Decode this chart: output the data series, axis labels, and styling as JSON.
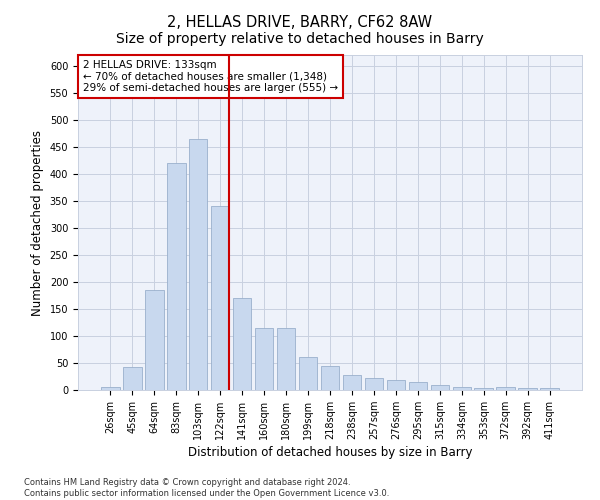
{
  "title": "2, HELLAS DRIVE, BARRY, CF62 8AW",
  "subtitle": "Size of property relative to detached houses in Barry",
  "xlabel": "Distribution of detached houses by size in Barry",
  "ylabel": "Number of detached properties",
  "categories": [
    "26sqm",
    "45sqm",
    "64sqm",
    "83sqm",
    "103sqm",
    "122sqm",
    "141sqm",
    "160sqm",
    "180sqm",
    "199sqm",
    "218sqm",
    "238sqm",
    "257sqm",
    "276sqm",
    "295sqm",
    "315sqm",
    "334sqm",
    "353sqm",
    "372sqm",
    "392sqm",
    "411sqm"
  ],
  "values": [
    5,
    42,
    185,
    420,
    465,
    340,
    170,
    115,
    115,
    62,
    45,
    28,
    22,
    18,
    14,
    10,
    5,
    3,
    5,
    3,
    3
  ],
  "bar_color": "#c8d8ee",
  "bar_edge_color": "#9ab0cc",
  "vline_color": "#cc0000",
  "annotation_line1": "2 HELLAS DRIVE: 133sqm",
  "annotation_line2": "← 70% of detached houses are smaller (1,348)",
  "annotation_line3": "29% of semi-detached houses are larger (555) →",
  "annotation_box_color": "#ffffff",
  "annotation_box_edge": "#cc0000",
  "ylim": [
    0,
    620
  ],
  "yticks": [
    0,
    50,
    100,
    150,
    200,
    250,
    300,
    350,
    400,
    450,
    500,
    550,
    600
  ],
  "footer_line1": "Contains HM Land Registry data © Crown copyright and database right 2024.",
  "footer_line2": "Contains public sector information licensed under the Open Government Licence v3.0.",
  "plot_bg_color": "#eef2fa",
  "grid_color": "#c8d0e0",
  "title_fontsize": 10.5,
  "tick_fontsize": 7,
  "label_fontsize": 8.5,
  "annot_fontsize": 7.5,
  "vline_x_index": 5.42
}
